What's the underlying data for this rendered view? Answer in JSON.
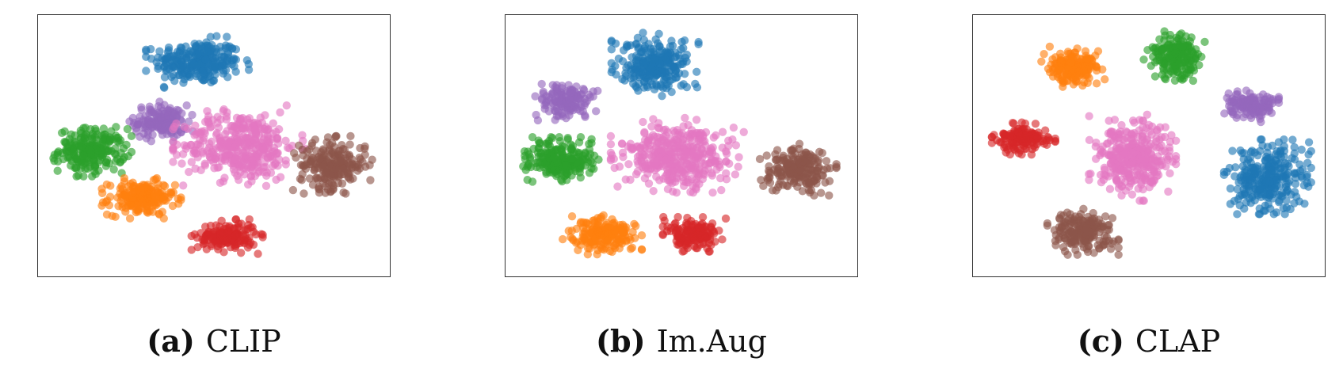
{
  "colors": {
    "blue": "#1f77b4",
    "orange": "#ff7f0e",
    "green": "#2ca02c",
    "red": "#d62728",
    "purple": "#9467bd",
    "brown": "#8c564b",
    "pink": "#e377c2"
  },
  "chart_data": [
    {
      "type": "scatter",
      "tag": "(a)",
      "caption": "CLIP",
      "xlim": [
        0,
        100
      ],
      "ylim": [
        0,
        100
      ],
      "grid": false,
      "clusters": [
        {
          "color": "blue",
          "cx": 45,
          "cy": 85,
          "sx": 6.5,
          "sy": 4.5,
          "n": 260
        },
        {
          "color": "purple",
          "cx": 34,
          "cy": 60,
          "sx": 4.0,
          "sy": 3.5,
          "n": 150
        },
        {
          "color": "green",
          "cx": 13,
          "cy": 48,
          "sx": 5.0,
          "sy": 4.5,
          "n": 220
        },
        {
          "color": "orange",
          "cx": 28,
          "cy": 28,
          "sx": 5.0,
          "sy": 3.5,
          "n": 190
        },
        {
          "color": "pink",
          "cx": 58,
          "cy": 50,
          "sx": 8.5,
          "sy": 7.0,
          "n": 380
        },
        {
          "color": "brown",
          "cx": 86,
          "cy": 42,
          "sx": 5.0,
          "sy": 5.0,
          "n": 210
        },
        {
          "color": "red",
          "cx": 54,
          "cy": 12,
          "sx": 4.5,
          "sy": 3.0,
          "n": 160
        }
      ]
    },
    {
      "type": "scatter",
      "tag": "(b)",
      "caption": "Im.Aug",
      "xlim": [
        0,
        100
      ],
      "ylim": [
        0,
        100
      ],
      "grid": false,
      "clusters": [
        {
          "color": "blue",
          "cx": 42,
          "cy": 84,
          "sx": 5.5,
          "sy": 5.5,
          "n": 250
        },
        {
          "color": "purple",
          "cx": 15,
          "cy": 69,
          "sx": 4.0,
          "sy": 3.5,
          "n": 140
        },
        {
          "color": "green",
          "cx": 14,
          "cy": 44,
          "sx": 5.0,
          "sy": 4.0,
          "n": 220
        },
        {
          "color": "pink",
          "cx": 49,
          "cy": 46,
          "sx": 8.5,
          "sy": 6.5,
          "n": 380
        },
        {
          "color": "brown",
          "cx": 85,
          "cy": 40,
          "sx": 5.0,
          "sy": 4.5,
          "n": 200
        },
        {
          "color": "orange",
          "cx": 26,
          "cy": 13,
          "sx": 5.0,
          "sy": 3.5,
          "n": 190
        },
        {
          "color": "red",
          "cx": 54,
          "cy": 13,
          "sx": 4.0,
          "sy": 3.0,
          "n": 150
        }
      ]
    },
    {
      "type": "scatter",
      "tag": "(c)",
      "caption": "CLAP",
      "xlim": [
        0,
        100
      ],
      "ylim": [
        0,
        100
      ],
      "grid": false,
      "clusters": [
        {
          "color": "orange",
          "cx": 27,
          "cy": 83,
          "sx": 4.0,
          "sy": 3.5,
          "n": 170
        },
        {
          "color": "green",
          "cx": 58,
          "cy": 87,
          "sx": 4.0,
          "sy": 4.5,
          "n": 190
        },
        {
          "color": "purple",
          "cx": 81,
          "cy": 67,
          "sx": 3.5,
          "sy": 3.0,
          "n": 130
        },
        {
          "color": "red",
          "cx": 12,
          "cy": 53,
          "sx": 4.0,
          "sy": 2.8,
          "n": 140
        },
        {
          "color": "pink",
          "cx": 45,
          "cy": 45,
          "sx": 5.5,
          "sy": 7.5,
          "n": 330
        },
        {
          "color": "blue",
          "cx": 86,
          "cy": 37,
          "sx": 5.5,
          "sy": 6.5,
          "n": 280
        },
        {
          "color": "brown",
          "cx": 30,
          "cy": 14,
          "sx": 4.5,
          "sy": 4.0,
          "n": 180
        }
      ]
    }
  ]
}
